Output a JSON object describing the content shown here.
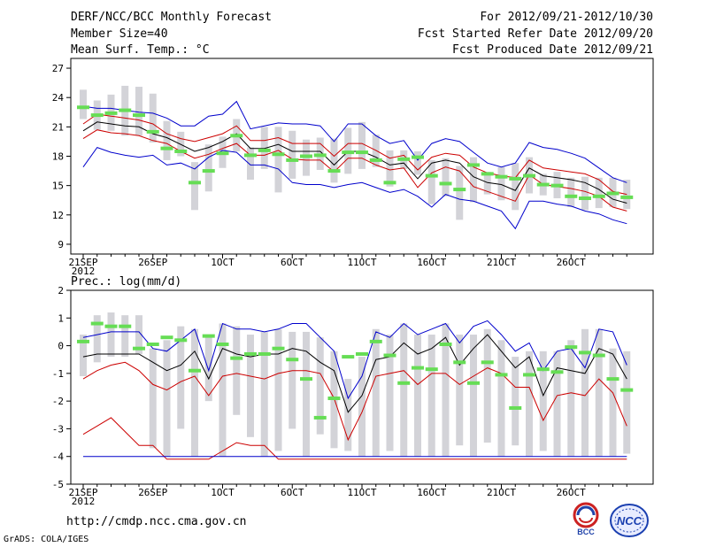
{
  "header": {
    "title": "DERF/NCC/BCC Monthly Forecast",
    "member_size": "Member Size=40",
    "variable": "Mean Surf. Temp.: °C",
    "period": "For 2012/09/21-2012/10/30",
    "started": "Fcst Started Refer Date 2012/09/20",
    "produced": "Fcst Produced Date 2012/09/21"
  },
  "footer": {
    "url": "http://cmdp.ncc.cma.gov.cn",
    "credit": "GrADS: COLA/IGES",
    "logo_left": "BCC",
    "logo_right": "NCC"
  },
  "colors": {
    "band": "#d3d3d8",
    "median": "#66dd55",
    "blue": "#0000cc",
    "red": "#cc0000",
    "black": "#000000"
  },
  "chart_data": [
    {
      "type": "line",
      "title": "Mean Surf. Temp.: °C",
      "ylim": [
        8,
        28
      ],
      "yticks": [
        9,
        12,
        15,
        18,
        21,
        24,
        27
      ],
      "xlabels": [
        "21SEP",
        "26SEP",
        "1OCT",
        "6OCT",
        "11OCT",
        "16OCT",
        "21OCT",
        "26OCT"
      ],
      "year_label": "2012",
      "days": 40,
      "series": [
        {
          "name": "max",
          "color": "blue",
          "values": [
            16.9,
            18.9,
            18.4,
            18.1,
            17.9,
            18.1,
            17.1,
            17.3,
            16.7,
            17.9,
            18.6,
            18.4,
            17.1,
            17.1,
            16.7,
            15.3,
            15.1,
            15.1,
            14.8,
            15.1,
            15.3,
            14.8,
            14.3,
            14.6,
            13.9,
            12.8,
            14.1,
            13.6,
            13.4,
            12.9,
            12.4,
            10.6,
            13.4,
            13.4,
            13.1,
            12.9,
            12.4,
            12.1,
            11.5,
            11.1
          ]
        },
        {
          "name": "p90",
          "color": "red",
          "values": [
            19.8,
            20.7,
            20.4,
            20.3,
            20.1,
            19.6,
            19.3,
            18.5,
            17.8,
            18.2,
            18.8,
            19.3,
            18.1,
            18.1,
            18.6,
            17.7,
            17.6,
            17.6,
            16.4,
            17.8,
            17.8,
            17.1,
            16.6,
            16.8,
            14.8,
            16.3,
            16.9,
            16.5,
            14.9,
            14.4,
            13.9,
            13.4,
            16.1,
            15.1,
            14.9,
            14.7,
            14.4,
            13.9,
            12.8,
            12.4
          ]
        },
        {
          "name": "mean",
          "color": "black",
          "values": [
            20.6,
            21.5,
            21.3,
            21.1,
            21.0,
            20.3,
            19.9,
            19.2,
            18.5,
            18.9,
            19.5,
            20.3,
            18.8,
            18.8,
            19.2,
            18.5,
            18.5,
            18.5,
            17.1,
            18.5,
            18.5,
            17.9,
            17.1,
            17.3,
            15.7,
            17.3,
            17.6,
            17.3,
            15.9,
            15.3,
            15.1,
            14.5,
            16.8,
            16.0,
            15.8,
            15.6,
            15.3,
            14.6,
            13.6,
            13.2
          ]
        },
        {
          "name": "p10",
          "color": "red",
          "values": [
            21.3,
            22.3,
            22.1,
            21.9,
            21.7,
            21.3,
            20.3,
            19.8,
            19.5,
            19.9,
            20.3,
            21.1,
            19.6,
            19.6,
            19.9,
            19.3,
            19.3,
            19.3,
            18.0,
            19.3,
            19.3,
            18.6,
            17.8,
            18.1,
            16.6,
            17.9,
            18.3,
            18.1,
            16.9,
            16.3,
            16.0,
            15.8,
            17.6,
            16.8,
            16.6,
            16.4,
            16.2,
            15.6,
            14.4,
            14.1
          ]
        },
        {
          "name": "min",
          "color": "blue",
          "values": [
            23.1,
            22.9,
            22.9,
            22.7,
            22.5,
            22.4,
            21.9,
            21.1,
            21.1,
            22.1,
            22.3,
            23.6,
            20.8,
            21.1,
            21.4,
            21.3,
            21.3,
            21.1,
            19.5,
            21.3,
            21.3,
            20.1,
            19.3,
            19.6,
            17.6,
            19.3,
            19.8,
            19.5,
            18.4,
            17.3,
            16.9,
            17.3,
            19.4,
            18.9,
            18.7,
            18.3,
            17.8,
            16.8,
            15.8,
            15.3
          ]
        },
        {
          "name": "median",
          "color": "median",
          "values": [
            23.0,
            22.2,
            22.4,
            22.7,
            22.2,
            20.5,
            18.8,
            18.5,
            15.3,
            16.5,
            18.3,
            20.1,
            18.1,
            18.6,
            18.2,
            17.6,
            18.0,
            18.1,
            16.5,
            18.4,
            18.4,
            17.6,
            15.3,
            17.7,
            17.9,
            16.0,
            15.2,
            14.6,
            17.1,
            16.2,
            15.9,
            15.7,
            16.0,
            15.1,
            15.0,
            13.9,
            13.7,
            13.9,
            14.2,
            13.8
          ]
        },
        {
          "name": "box_low",
          "color": "band",
          "values": [
            21.8,
            20.7,
            20.6,
            20.1,
            20.1,
            19.4,
            17.6,
            18.0,
            12.5,
            14.4,
            16.8,
            18.5,
            15.6,
            16.7,
            14.3,
            15.7,
            16.0,
            16.6,
            15.3,
            16.2,
            16.7,
            16.9,
            14.9,
            16.7,
            16.1,
            13.1,
            13.9,
            11.5,
            13.3,
            14.1,
            13.5,
            12.5,
            14.2,
            14.0,
            13.7,
            12.8,
            12.5,
            12.7,
            12.8,
            12.6
          ]
        },
        {
          "name": "box_high",
          "color": "band",
          "values": [
            24.8,
            23.7,
            24.3,
            25.2,
            25.1,
            24.4,
            21.6,
            20.5,
            17.4,
            19.2,
            20.0,
            21.8,
            18.9,
            21.0,
            21.0,
            20.6,
            19.7,
            19.9,
            19.8,
            20.9,
            21.5,
            20.2,
            18.6,
            18.6,
            18.5,
            17.6,
            17.8,
            17.0,
            17.9,
            16.4,
            16.9,
            17.3,
            17.9,
            16.2,
            16.4,
            15.8,
            15.9,
            15.8,
            15.8,
            15.6
          ]
        }
      ]
    },
    {
      "type": "line",
      "title": "Prec.: log(mm/d)",
      "ylim": [
        -5,
        2
      ],
      "yticks": [
        -5,
        -4,
        -3,
        -2,
        -1,
        0,
        1,
        2
      ],
      "xlabels": [
        "21SEP",
        "26SEP",
        "1OCT",
        "6OCT",
        "11OCT",
        "16OCT",
        "21OCT",
        "26OCT"
      ],
      "year_label": "2012",
      "days": 40,
      "series": [
        {
          "name": "max",
          "color": "blue",
          "values": [
            0.3,
            0.4,
            0.5,
            0.5,
            0.5,
            -0.1,
            -0.2,
            0.2,
            0.6,
            -0.9,
            0.8,
            0.6,
            0.6,
            0.5,
            0.6,
            0.8,
            0.8,
            0.3,
            -0.2,
            -1.9,
            -1.1,
            0.5,
            0.3,
            0.8,
            0.4,
            0.6,
            0.8,
            0.1,
            0.7,
            0.9,
            0.4,
            -0.2,
            0.1,
            -0.9,
            -0.2,
            -0.1,
            -0.8,
            0.6,
            0.5,
            -0.7
          ]
        },
        {
          "name": "mean",
          "color": "black",
          "values": [
            -0.4,
            -0.3,
            -0.3,
            -0.3,
            -0.3,
            -0.6,
            -0.9,
            -0.7,
            -0.2,
            -1.2,
            -0.1,
            -0.3,
            -0.4,
            -0.3,
            -0.3,
            -0.1,
            -0.2,
            -0.6,
            -0.9,
            -2.4,
            -1.8,
            -0.5,
            -0.4,
            0.1,
            -0.3,
            -0.1,
            0.3,
            -0.7,
            -0.1,
            0.4,
            -0.2,
            -0.8,
            -0.4,
            -1.8,
            -0.8,
            -0.9,
            -1.0,
            -0.1,
            -0.3,
            -1.2
          ]
        },
        {
          "name": "p10",
          "color": "red",
          "values": [
            -3.2,
            -2.9,
            -2.6,
            -3.1,
            -3.6,
            -3.6,
            -4.1,
            -4.1,
            -4.1,
            -4.1,
            -3.8,
            -3.5,
            -3.6,
            -3.6,
            -4.1,
            -4.1,
            -4.1,
            -4.1,
            -4.1,
            -4.1,
            -4.1,
            -4.1,
            -4.1,
            -4.1,
            -4.1,
            -4.1,
            -4.1,
            -4.1,
            -4.1,
            -4.1,
            -4.1,
            -4.1,
            -4.1,
            -4.1,
            -4.1,
            -4.1,
            -4.1,
            -4.1,
            -4.1,
            -4.1
          ]
        },
        {
          "name": "p90",
          "color": "red",
          "values": [
            -1.2,
            -0.9,
            -0.7,
            -0.6,
            -0.9,
            -1.4,
            -1.6,
            -1.3,
            -1.1,
            -1.8,
            -1.1,
            -1.0,
            -1.1,
            -1.2,
            -1.0,
            -0.9,
            -0.9,
            -1.0,
            -1.9,
            -3.4,
            -2.4,
            -1.1,
            -1.0,
            -0.9,
            -1.4,
            -1.0,
            -1.0,
            -1.4,
            -1.1,
            -0.8,
            -1.0,
            -1.5,
            -1.5,
            -2.7,
            -1.8,
            -1.7,
            -1.8,
            -1.2,
            -1.7,
            -2.9
          ]
        },
        {
          "name": "floor",
          "color": "blue",
          "values": [
            -4.0,
            -4.0,
            -4.0,
            -4.0,
            -4.0,
            -4.0,
            -4.0,
            -4.0,
            -4.0,
            -4.0,
            -4.0,
            -4.0,
            -4.0,
            -4.0,
            -4.0,
            -4.0,
            -4.0,
            -4.0,
            -4.0,
            -4.0,
            -4.0,
            -4.0,
            -4.0,
            -4.0,
            -4.0,
            -4.0,
            -4.0,
            -4.0,
            -4.0,
            -4.0,
            -4.0,
            -4.0,
            -4.0,
            -4.0,
            -4.0,
            -4.0,
            -4.0,
            -4.0,
            -4.0,
            -4.0
          ]
        },
        {
          "name": "median",
          "color": "median",
          "values": [
            0.15,
            0.8,
            0.7,
            0.7,
            -0.1,
            0.05,
            0.3,
            0.2,
            -0.9,
            0.35,
            0.05,
            -0.45,
            -0.3,
            -0.3,
            -0.1,
            -0.5,
            -1.2,
            -2.6,
            -1.9,
            -0.4,
            -0.3,
            0.15,
            -0.35,
            -1.35,
            -0.8,
            -0.85,
            0.05,
            -0.6,
            -1.35,
            -0.6,
            -1.05,
            -2.25,
            -1.05,
            -0.85,
            -0.95,
            -0.05,
            -0.25,
            -0.35,
            -1.2,
            -1.6
          ]
        },
        {
          "name": "box_low",
          "color": "band",
          "values": [
            -1.1,
            -0.6,
            -0.4,
            -0.4,
            -0.3,
            -3.7,
            -4.0,
            -3.0,
            -4.0,
            -2.0,
            -4.0,
            -2.5,
            -3.3,
            -4.0,
            -3.8,
            -3.0,
            -4.0,
            -3.2,
            -3.7,
            -3.8,
            -4.0,
            -4.0,
            -3.8,
            -4.0,
            -4.0,
            -4.0,
            -4.0,
            -3.6,
            -4.0,
            -3.5,
            -4.0,
            -3.6,
            -4.0,
            -3.8,
            -4.0,
            -4.0,
            -4.0,
            -4.0,
            -4.0,
            -3.9
          ]
        },
        {
          "name": "box_high",
          "color": "band",
          "values": [
            0.4,
            1.1,
            1.2,
            1.1,
            1.1,
            -0.1,
            0.2,
            0.7,
            0.6,
            0.3,
            0.8,
            0.7,
            0.4,
            0.5,
            0.6,
            0.5,
            0.5,
            0.3,
            -0.2,
            -1.2,
            -0.4,
            0.6,
            0.4,
            0.8,
            0.4,
            0.4,
            0.8,
            0.4,
            0.4,
            0.6,
            0.2,
            -0.4,
            -0.2,
            -0.2,
            -0.2,
            0.2,
            0.6,
            0.6,
            -0.1,
            -0.2
          ]
        }
      ]
    }
  ]
}
